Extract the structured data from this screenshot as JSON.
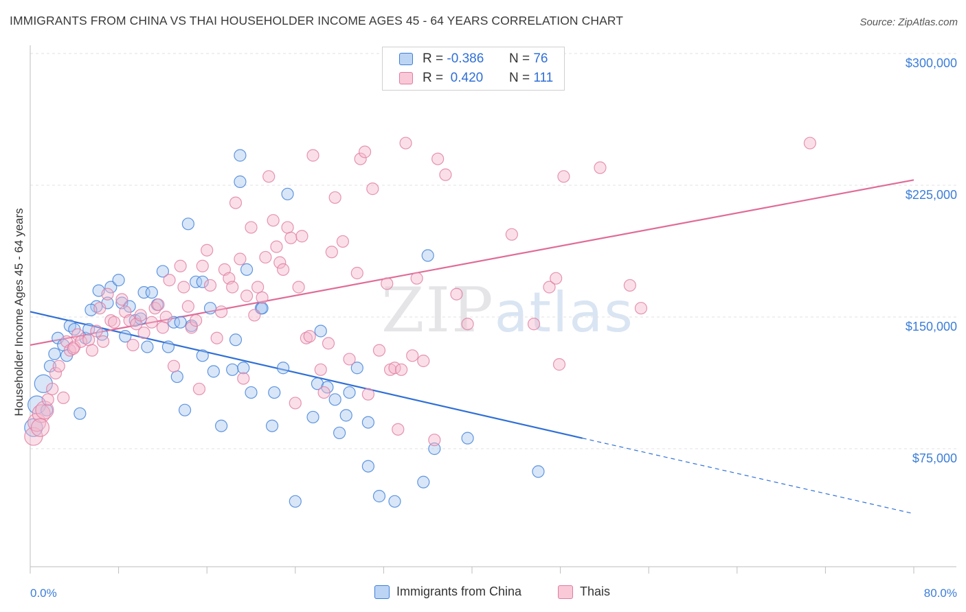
{
  "title": "IMMIGRANTS FROM CHINA VS THAI HOUSEHOLDER INCOME AGES 45 - 64 YEARS CORRELATION CHART",
  "source": "Source: ZipAtlas.com",
  "watermark": {
    "zip": "ZIP",
    "atlas": "atlas"
  },
  "colors": {
    "blue": "#3b7dd8",
    "pink": "#e07aa0",
    "blue_fill": "#a9c8f0",
    "pink_fill": "#f5b7cb"
  },
  "legend": {
    "rows": [
      {
        "r_label": "R =",
        "r_value": "-0.386",
        "n_label": "N =",
        "n_value": "76"
      },
      {
        "r_label": "R =",
        "r_value": " 0.420",
        "n_label": "N =",
        "n_value": "111"
      }
    ]
  },
  "bottom_legend": [
    "Immigrants from China",
    "Thais"
  ],
  "chart_data": {
    "type": "scatter",
    "title": "IMMIGRANTS FROM CHINA VS THAI HOUSEHOLDER INCOME AGES 45 - 64 YEARS CORRELATION CHART",
    "xlabel": "",
    "ylabel": "Householder Income Ages 45 - 64 years",
    "x_tick_labels": [
      "0.0%",
      "80.0%"
    ],
    "y_tick_labels": [
      "$75,000",
      "$150,000",
      "$225,000",
      "$300,000"
    ],
    "y_ticks": [
      75000,
      150000,
      225000,
      300000
    ],
    "xlim": [
      0,
      80
    ],
    "ylim": [
      0,
      310000
    ],
    "grid": true,
    "legend_position": "top-center",
    "series": [
      {
        "name": "Immigrants from China",
        "color": "#3b7dd8",
        "r": -0.386,
        "n": 76,
        "trend": {
          "x0": 0,
          "y0": 153000,
          "x1": 50,
          "y1": 81000,
          "dashed_to_x": 80,
          "dashed_to_y": 38000
        },
        "points": [
          [
            0.3,
            87000
          ],
          [
            0.6,
            100000
          ],
          [
            1.2,
            112000
          ],
          [
            1.8,
            122000
          ],
          [
            2.2,
            129000
          ],
          [
            2.5,
            138000
          ],
          [
            3.0,
            134000
          ],
          [
            3.3,
            128000
          ],
          [
            3.6,
            145000
          ],
          [
            4.0,
            143000
          ],
          [
            4.5,
            95000
          ],
          [
            5.0,
            138000
          ],
          [
            5.3,
            143000
          ],
          [
            6.0,
            156000
          ],
          [
            6.2,
            165000
          ],
          [
            6.5,
            140000
          ],
          [
            7.0,
            158000
          ],
          [
            7.3,
            167000
          ],
          [
            8.0,
            171000
          ],
          [
            8.3,
            158000
          ],
          [
            8.6,
            139000
          ],
          [
            9.0,
            156000
          ],
          [
            9.5,
            148000
          ],
          [
            10.0,
            149000
          ],
          [
            10.3,
            164000
          ],
          [
            10.6,
            133000
          ],
          [
            11.0,
            164000
          ],
          [
            11.5,
            157000
          ],
          [
            12.0,
            176000
          ],
          [
            12.5,
            133000
          ],
          [
            13.0,
            147000
          ],
          [
            13.3,
            116000
          ],
          [
            13.6,
            147000
          ],
          [
            14.0,
            97000
          ],
          [
            14.3,
            203000
          ],
          [
            14.6,
            145000
          ],
          [
            15.0,
            170000
          ],
          [
            15.6,
            128000
          ],
          [
            15.6,
            170000
          ],
          [
            16.3,
            155000
          ],
          [
            16.6,
            119000
          ],
          [
            17.3,
            88000
          ],
          [
            18.3,
            120000
          ],
          [
            18.6,
            137000
          ],
          [
            19.0,
            227000
          ],
          [
            19.3,
            121000
          ],
          [
            19.6,
            177000
          ],
          [
            20.0,
            107000
          ],
          [
            20.9,
            155000
          ],
          [
            21.9,
            88000
          ],
          [
            22.1,
            107000
          ],
          [
            22.9,
            121000
          ],
          [
            23.3,
            220000
          ],
          [
            24.0,
            45000
          ],
          [
            25.6,
            93000
          ],
          [
            26.0,
            112000
          ],
          [
            26.3,
            142000
          ],
          [
            26.9,
            110000
          ],
          [
            27.6,
            103000
          ],
          [
            28.0,
            84000
          ],
          [
            28.6,
            94000
          ],
          [
            28.9,
            107000
          ],
          [
            29.6,
            121000
          ],
          [
            30.6,
            65000
          ],
          [
            30.6,
            90000
          ],
          [
            31.6,
            48000
          ],
          [
            33.0,
            45000
          ],
          [
            35.6,
            56000
          ],
          [
            36.0,
            185000
          ],
          [
            36.6,
            75000
          ],
          [
            39.6,
            81000
          ],
          [
            46.0,
            62000
          ],
          [
            21.0,
            155000
          ],
          [
            19.0,
            242000
          ],
          [
            1.5,
            97000
          ],
          [
            5.5,
            154000
          ]
        ]
      },
      {
        "name": "Thais",
        "color": "#e07aa0",
        "r": 0.42,
        "n": 111,
        "trend": {
          "x0": 0,
          "y0": 134000,
          "x1": 80,
          "y1": 228000
        },
        "points": [
          [
            0.3,
            82000
          ],
          [
            0.6,
            90000
          ],
          [
            1.0,
            95000
          ],
          [
            1.3,
            97000
          ],
          [
            1.6,
            103000
          ],
          [
            2.0,
            109000
          ],
          [
            2.3,
            118000
          ],
          [
            2.6,
            122000
          ],
          [
            3.0,
            104000
          ],
          [
            3.3,
            136000
          ],
          [
            3.6,
            131000
          ],
          [
            4.0,
            133000
          ],
          [
            4.3,
            140000
          ],
          [
            4.6,
            136000
          ],
          [
            5.3,
            137000
          ],
          [
            5.6,
            131000
          ],
          [
            6.0,
            142000
          ],
          [
            6.3,
            155000
          ],
          [
            6.6,
            136000
          ],
          [
            7.0,
            163000
          ],
          [
            7.3,
            148000
          ],
          [
            7.6,
            147000
          ],
          [
            8.3,
            160000
          ],
          [
            8.6,
            153000
          ],
          [
            9.0,
            148000
          ],
          [
            9.3,
            134000
          ],
          [
            9.6,
            146000
          ],
          [
            10.0,
            151000
          ],
          [
            10.3,
            141000
          ],
          [
            11.0,
            147000
          ],
          [
            11.3,
            155000
          ],
          [
            11.6,
            157000
          ],
          [
            12.0,
            144000
          ],
          [
            12.3,
            150000
          ],
          [
            12.6,
            171000
          ],
          [
            13.0,
            122000
          ],
          [
            13.6,
            179000
          ],
          [
            13.9,
            167000
          ],
          [
            14.3,
            156000
          ],
          [
            14.6,
            144000
          ],
          [
            15.0,
            148000
          ],
          [
            15.3,
            109000
          ],
          [
            15.6,
            179000
          ],
          [
            16.0,
            188000
          ],
          [
            16.3,
            168000
          ],
          [
            16.9,
            138000
          ],
          [
            17.3,
            153000
          ],
          [
            17.6,
            177000
          ],
          [
            18.0,
            172000
          ],
          [
            18.3,
            167000
          ],
          [
            18.6,
            215000
          ],
          [
            19.0,
            183000
          ],
          [
            19.3,
            115000
          ],
          [
            19.6,
            162000
          ],
          [
            20.0,
            201000
          ],
          [
            20.3,
            151000
          ],
          [
            20.6,
            167000
          ],
          [
            21.0,
            161000
          ],
          [
            21.3,
            184000
          ],
          [
            21.6,
            230000
          ],
          [
            22.0,
            205000
          ],
          [
            22.3,
            190000
          ],
          [
            22.6,
            181000
          ],
          [
            22.9,
            177000
          ],
          [
            23.3,
            201000
          ],
          [
            23.6,
            195000
          ],
          [
            24.0,
            101000
          ],
          [
            24.3,
            167000
          ],
          [
            24.6,
            196000
          ],
          [
            25.0,
            138000
          ],
          [
            25.3,
            139000
          ],
          [
            25.6,
            242000
          ],
          [
            26.3,
            120000
          ],
          [
            26.6,
            107000
          ],
          [
            27.0,
            135000
          ],
          [
            27.3,
            187000
          ],
          [
            27.6,
            218000
          ],
          [
            28.3,
            193000
          ],
          [
            28.9,
            126000
          ],
          [
            29.6,
            175000
          ],
          [
            29.9,
            240000
          ],
          [
            30.3,
            244000
          ],
          [
            30.6,
            106000
          ],
          [
            31.0,
            223000
          ],
          [
            31.6,
            131000
          ],
          [
            32.3,
            169000
          ],
          [
            32.6,
            120000
          ],
          [
            33.0,
            121000
          ],
          [
            33.3,
            86000
          ],
          [
            33.6,
            120000
          ],
          [
            34.0,
            249000
          ],
          [
            34.6,
            128000
          ],
          [
            35.0,
            172000
          ],
          [
            35.6,
            125000
          ],
          [
            36.6,
            80000
          ],
          [
            36.9,
            240000
          ],
          [
            37.6,
            231000
          ],
          [
            38.6,
            163000
          ],
          [
            39.6,
            146000
          ],
          [
            43.6,
            197000
          ],
          [
            45.6,
            146000
          ],
          [
            47.0,
            167000
          ],
          [
            47.6,
            172000
          ],
          [
            47.9,
            123000
          ],
          [
            48.3,
            230000
          ],
          [
            51.6,
            235000
          ],
          [
            54.3,
            168000
          ],
          [
            55.3,
            155000
          ],
          [
            70.6,
            249000
          ],
          [
            0.9,
            87000
          ],
          [
            3.9,
            132000
          ]
        ]
      }
    ]
  }
}
